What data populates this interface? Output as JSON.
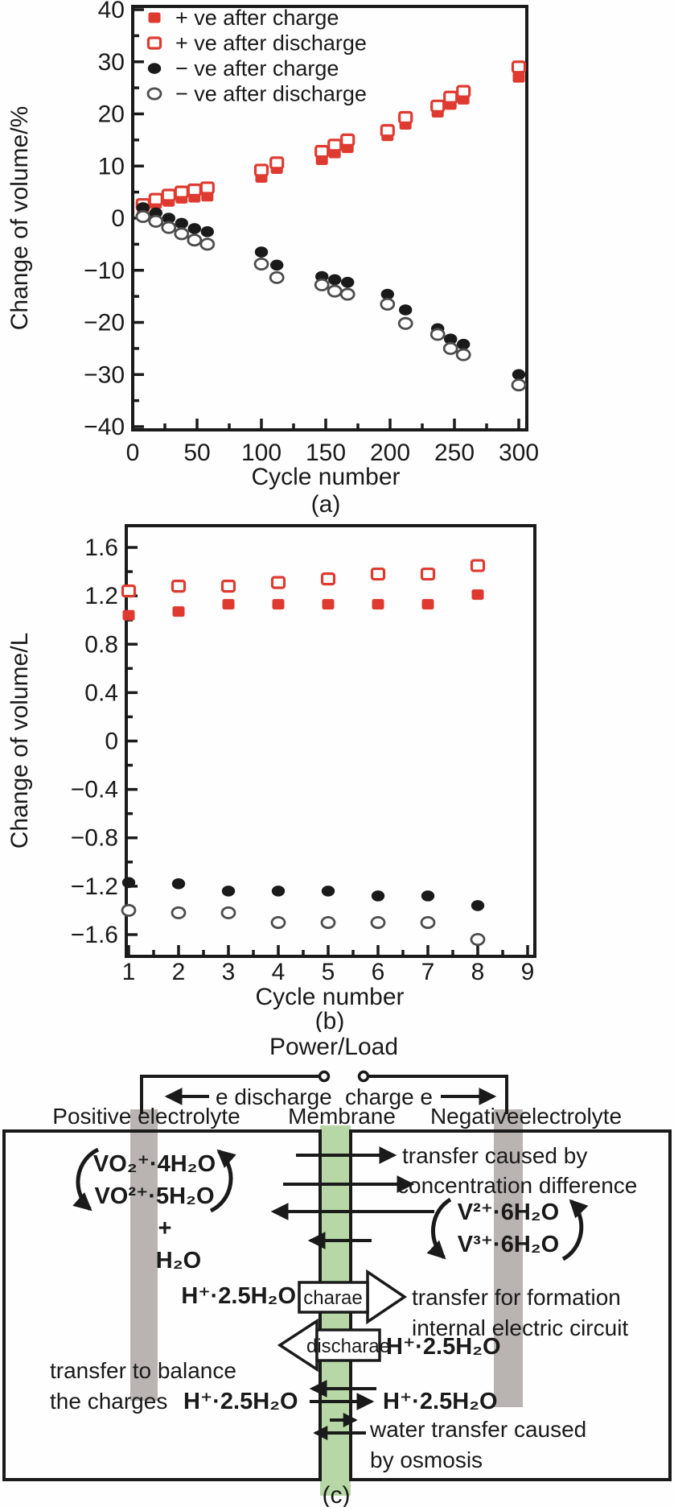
{
  "colors": {
    "accent_red": "#df3a30",
    "ink": "#1a1a1a",
    "open_circle_stroke": "#4d4d4d",
    "membrane_green": "#b7d8a6",
    "electrode_gray": "#b9b4b1"
  },
  "chart_data": [
    {
      "type": "scatter",
      "xlabel": "Cycle number",
      "ylabel": "Change of volume/%",
      "caption": "(a)",
      "xlim": [
        0,
        300
      ],
      "ylim": [
        -40,
        40
      ],
      "grid": false,
      "legend_position": "top-left",
      "xticks": [
        0,
        50,
        100,
        150,
        200,
        250,
        300
      ],
      "xtick_labels": [
        "0",
        "50",
        "100",
        "150",
        "200",
        "250",
        "300"
      ],
      "yticks": [
        40,
        30,
        20,
        10,
        0,
        -10,
        -20,
        -30,
        -40
      ],
      "ytick_labels": [
        "40",
        "30",
        "20",
        "10",
        "0",
        "−10",
        "−20",
        "−30",
        "−40"
      ],
      "x": [
        8,
        18,
        28,
        38,
        48,
        58,
        100,
        112,
        147,
        157,
        167,
        198,
        212,
        237,
        247,
        257,
        300
      ],
      "series": [
        {
          "name": "+ ve after charge",
          "marker": "square-filled",
          "color": "#df3a30",
          "values": [
            1.8,
            2.8,
            3.2,
            3.8,
            4.0,
            4.2,
            7.8,
            9.5,
            11.2,
            12.5,
            13.5,
            15.8,
            18.0,
            20.3,
            21.8,
            22.8,
            27.0
          ]
        },
        {
          "name": "+ ve after discharge",
          "marker": "square-open",
          "color": "#df3a30",
          "values": [
            2.6,
            3.6,
            4.4,
            5.0,
            5.4,
            5.8,
            9.2,
            10.6,
            12.8,
            14.0,
            15.0,
            16.8,
            19.3,
            21.5,
            23.2,
            24.3,
            29.0
          ]
        },
        {
          "name": "− ve after charge",
          "marker": "circle-filled",
          "color": "#1a1a1a",
          "values": [
            2.0,
            1.0,
            0.0,
            -1.0,
            -2.0,
            -2.6,
            -6.5,
            -9.0,
            -11.2,
            -11.8,
            -12.3,
            -14.6,
            -17.6,
            -21.2,
            -23.2,
            -24.2,
            -30.0
          ]
        },
        {
          "name": "− ve after discharge",
          "marker": "circle-open",
          "color": "#4d4d4d",
          "values": [
            0.3,
            -0.6,
            -1.8,
            -3.0,
            -4.2,
            -5.0,
            -8.8,
            -11.4,
            -12.8,
            -14.0,
            -14.6,
            -16.5,
            -20.2,
            -22.3,
            -25.0,
            -26.2,
            -32.0
          ]
        }
      ]
    },
    {
      "type": "scatter",
      "xlabel": "Cycle number",
      "ylabel": "Change of volume/L",
      "caption": "(b)",
      "xlim": [
        1,
        9
      ],
      "ylim": [
        -1.8,
        1.8
      ],
      "grid": false,
      "legend_position": "none",
      "xticks": [
        1,
        2,
        3,
        4,
        5,
        6,
        7,
        8,
        9
      ],
      "xtick_labels": [
        "1",
        "2",
        "3",
        "4",
        "5",
        "6",
        "7",
        "8",
        "9"
      ],
      "yticks": [
        1.6,
        1.2,
        0.8,
        0.4,
        0,
        -0.4,
        -0.8,
        -1.2,
        -1.6
      ],
      "ytick_labels": [
        "1.6",
        "1.2",
        "0.8",
        "0.4",
        "0",
        "−0.4",
        "−0.8",
        "−1.2",
        "−1.6"
      ],
      "x": [
        1,
        2,
        3,
        4,
        5,
        6,
        7,
        8
      ],
      "series": [
        {
          "name": "+ ve after discharge",
          "marker": "square-open",
          "color": "#df3a30",
          "values": [
            1.24,
            1.28,
            1.28,
            1.31,
            1.34,
            1.38,
            1.38,
            1.45
          ]
        },
        {
          "name": "+ ve after charge",
          "marker": "square-filled",
          "color": "#df3a30",
          "values": [
            1.04,
            1.07,
            1.13,
            1.13,
            1.13,
            1.13,
            1.13,
            1.21
          ]
        },
        {
          "name": "− ve after charge",
          "marker": "circle-filled",
          "color": "#1a1a1a",
          "values": [
            -1.17,
            -1.18,
            -1.24,
            -1.24,
            -1.24,
            -1.28,
            -1.28,
            -1.36
          ]
        },
        {
          "name": "− ve after discharge",
          "marker": "circle-open",
          "color": "#4d4d4d",
          "values": [
            -1.4,
            -1.42,
            -1.42,
            -1.5,
            -1.5,
            -1.5,
            -1.5,
            -1.64
          ]
        }
      ]
    }
  ],
  "diagram": {
    "caption": "(c)",
    "power_load": "Power/Load",
    "discharge_label": "e discharge",
    "charge_label": "charge e",
    "positive_label": "Positive electrolyte",
    "membrane_label": "Membrane",
    "negative_label": "Negativeelectrolyte",
    "pos_species_1": "VO₂⁺·4H₂O",
    "pos_species_2": "VO²⁺·5H₂O",
    "plus": "+",
    "water": "H₂O",
    "transfer_concentration_1": "transfer caused by",
    "transfer_concentration_2": "concentration difference",
    "neg_species_1": "V²⁺·6H₂O",
    "neg_species_2": "V³⁺·6H₂O",
    "proton_left": "H⁺·2.5H₂O",
    "charge_arrow_label": "charae",
    "transfer_formation_1": "transfer for formation",
    "transfer_formation_2": "internal electric circuit",
    "discharge_arrow_label": "discharae",
    "proton_right_discharge": "H⁺·2.5H₂O",
    "balance_1": "transfer to balance",
    "balance_2": "the charges",
    "proton_balance_left": "H⁺·2.5H₂O",
    "proton_balance_right": "H⁺·2.5H₂O",
    "osmosis_1": "water transfer caused",
    "osmosis_2": "by osmosis"
  }
}
